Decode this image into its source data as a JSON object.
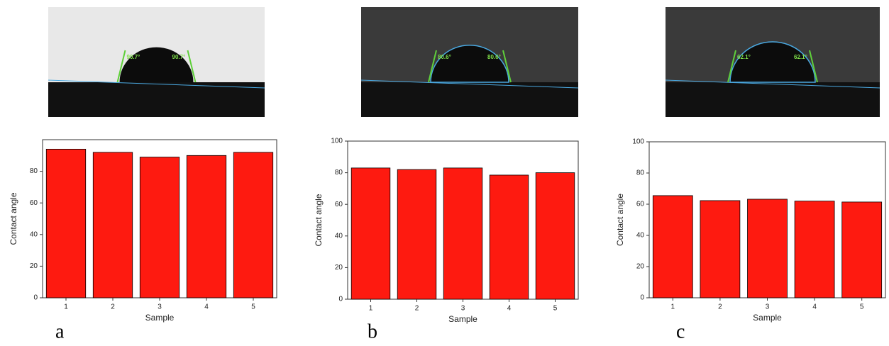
{
  "chart_data": [
    {
      "type": "bar",
      "panel": "a",
      "photo_angles": [
        "90.7°",
        "90.7°"
      ],
      "y_label": "Contact angle",
      "x_label": "Sample",
      "categories": [
        "1",
        "2",
        "3",
        "4",
        "5"
      ],
      "values": [
        94,
        92,
        89,
        90,
        92
      ],
      "color": "#fe1a10",
      "ylim": [
        0,
        100
      ],
      "yticks": [
        0,
        20,
        40,
        60,
        80
      ]
    },
    {
      "type": "bar",
      "panel": "b",
      "photo_angles": [
        "80.6°",
        "80.6°"
      ],
      "y_label": "Contact angle",
      "x_label": "Sample",
      "categories": [
        "1",
        "2",
        "3",
        "4",
        "5"
      ],
      "values": [
        83,
        82,
        83,
        78.5,
        80
      ],
      "color": "#fe1a10",
      "ylim": [
        0,
        100
      ],
      "yticks": [
        0,
        20,
        40,
        60,
        80,
        100
      ]
    },
    {
      "type": "bar",
      "panel": "c",
      "photo_angles": [
        "62.1°",
        "62.1°"
      ],
      "y_label": "Contact angle",
      "x_label": "Sample",
      "categories": [
        "1",
        "2",
        "3",
        "4",
        "5"
      ],
      "values": [
        65.5,
        62.3,
        63.2,
        62,
        61.4
      ],
      "color": "#fe1a10",
      "ylim": [
        0,
        100
      ],
      "yticks": [
        0,
        20,
        40,
        60,
        80,
        100
      ]
    }
  ]
}
